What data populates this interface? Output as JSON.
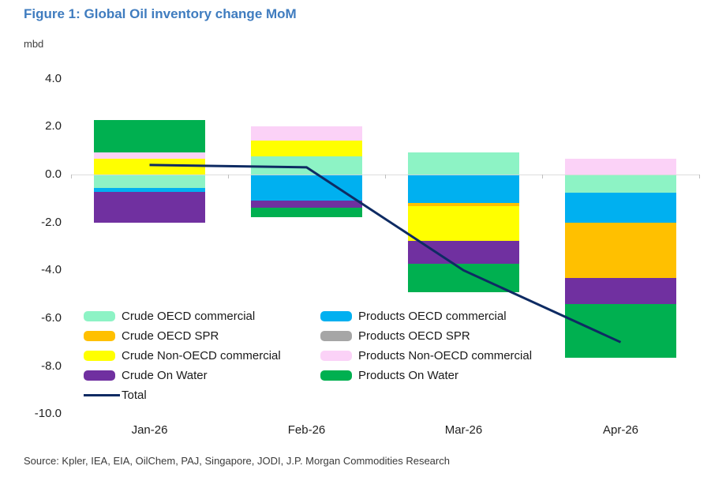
{
  "title": "Figure 1: Global Oil inventory change MoM",
  "unit_label": "mbd",
  "source": "Source: Kpler, IEA, EIA, OilChem, PAJ, Singapore, JODI, J.P. Morgan Commodities Research",
  "colors": {
    "title_text": "#3F7CBF",
    "axis_text": "#1F1F1F",
    "zero_gridline": "#D9D9D9",
    "total_line": "#0E2B63"
  },
  "chart_data": {
    "type": "bar",
    "stacked": true,
    "title": "Figure 1: Global Oil inventory change MoM",
    "ylabel": "mbd",
    "categories": [
      "Jan-26",
      "Feb-26",
      "Mar-26",
      "Apr-26"
    ],
    "ytick_labels": [
      "4.0",
      "2.0",
      "0.0",
      "-2.0",
      "-4.0",
      "-6.0",
      "-8.0",
      "-10.0"
    ],
    "ylim": [
      -10.5,
      4.6
    ],
    "grid": "zero-line-only",
    "legend_position": "inside-bottom-left",
    "series": [
      {
        "name": "Crude OECD commercial",
        "color": "#8DF3C5",
        "values": [
          -0.57,
          0.76,
          0.92,
          -0.77
        ]
      },
      {
        "name": "Products OECD commercial",
        "color": "#00B0F0",
        "values": [
          -0.16,
          -1.09,
          -1.2,
          -1.25
        ]
      },
      {
        "name": "Crude OECD SPR",
        "color": "#FFC000",
        "values": [
          0.0,
          0.0,
          -0.11,
          -2.3
        ]
      },
      {
        "name": "Crude Non-OECD commercial",
        "color": "#FFFF00",
        "values": [
          0.66,
          0.66,
          -1.45,
          0.0
        ]
      },
      {
        "name": "Products Non-OECD commercial",
        "color": "#FBD2F7",
        "values": [
          0.25,
          0.58,
          0.0,
          0.66
        ]
      },
      {
        "name": "Crude On Water",
        "color": "#7030A0",
        "values": [
          -1.27,
          -0.3,
          -0.96,
          -1.09
        ]
      },
      {
        "name": "Products On Water",
        "color": "#00B050",
        "values": [
          1.37,
          -0.38,
          -1.18,
          -2.24
        ]
      },
      {
        "name": "Products OECD SPR",
        "color": "#A6A6A6",
        "values": [
          0.0,
          0.0,
          0.0,
          0.0
        ]
      }
    ],
    "line_series": {
      "name": "Total",
      "color": "#0E2B63",
      "values": [
        0.4,
        0.3,
        -4.0,
        -7.0
      ]
    },
    "legend_columns": [
      [
        "Crude OECD commercial",
        "Crude OECD SPR",
        "Crude Non-OECD commercial",
        "Crude On Water",
        "Total"
      ],
      [
        "Products OECD commercial",
        "Products OECD SPR",
        "Products Non-OECD commercial",
        "Products On Water"
      ]
    ]
  }
}
